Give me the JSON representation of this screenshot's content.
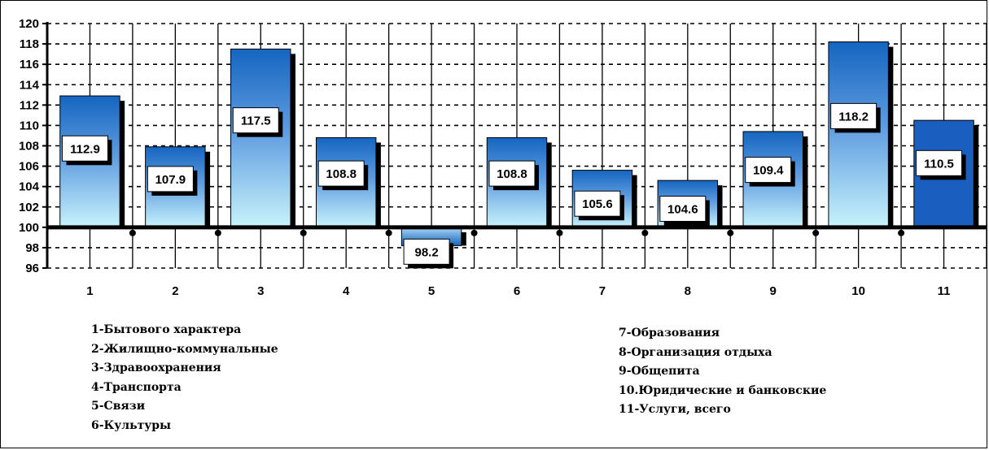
{
  "chart_data": {
    "type": "bar",
    "categories": [
      "1",
      "2",
      "3",
      "4",
      "5",
      "6",
      "7",
      "8",
      "9",
      "10",
      "11"
    ],
    "values": [
      112.9,
      107.9,
      117.5,
      108.8,
      98.2,
      108.8,
      105.6,
      104.6,
      109.4,
      118.2,
      110.5
    ],
    "data_labels": [
      "112.9",
      "107.9",
      "117.5",
      "108.8",
      "98.2",
      "108.8",
      "105.6",
      "104.6",
      "109.4",
      "118.2",
      "110.5"
    ],
    "ylim": [
      96,
      120
    ],
    "baseline": 100,
    "yticks": [
      "96",
      "98",
      "100",
      "102",
      "104",
      "106",
      "108",
      "110",
      "112",
      "114",
      "116",
      "118",
      "120"
    ],
    "grid": true,
    "title": "",
    "xlabel": "",
    "ylabel": "",
    "colors": {
      "bar_top": "#1565c0",
      "bar_bottom": "#c8f3fb",
      "highlight_bar": "#1a5fc0",
      "shadow": "#000000"
    },
    "legend_left": [
      "1-Бытового характера",
      "2-Жилищно-коммунальные",
      "3-Здравоохранения",
      "4-Транспорта",
      "5-Связи",
      "6-Культуры"
    ],
    "legend_right": [
      "7-Образования",
      "8-Организация отдыха",
      "9-Общепита",
      "10.Юридические и банковские",
      "11-Услуги, всего"
    ]
  }
}
